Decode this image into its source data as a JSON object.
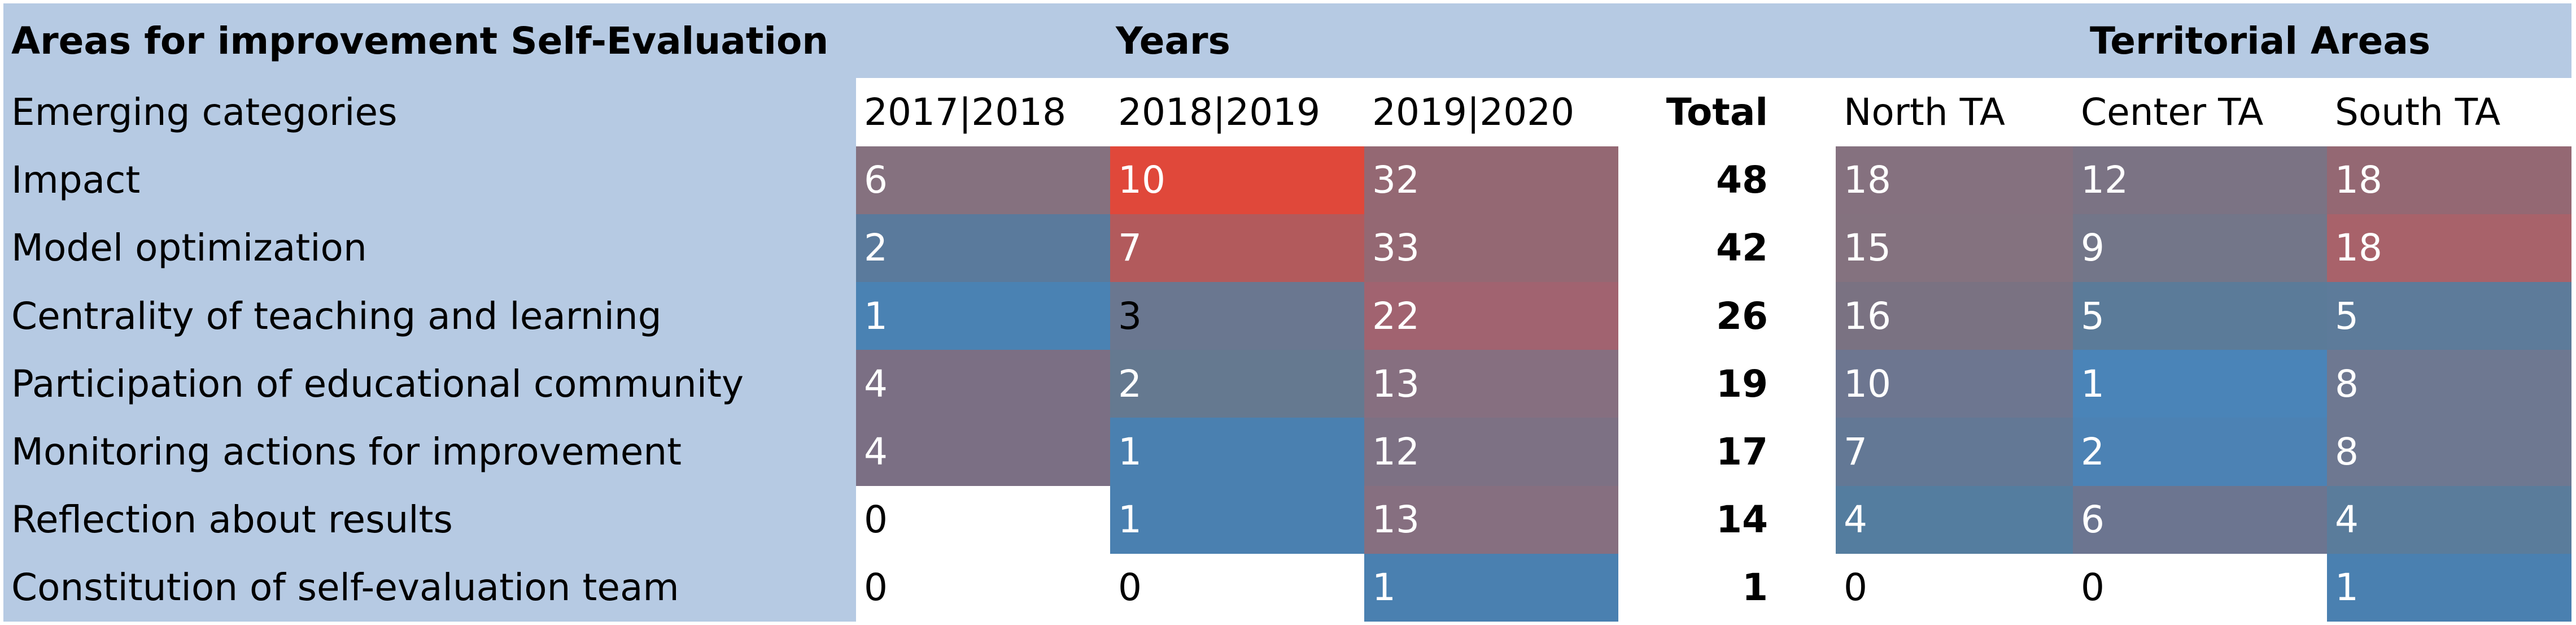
{
  "chart_data": {
    "type": "heatmap",
    "title": "Areas for improvement Self-Evaluation",
    "row_header": "Emerging categories",
    "groups": [
      {
        "name": "Years",
        "columns": [
          "2017|2018",
          "2018|2019",
          "2019|2020"
        ]
      },
      {
        "name": "Territorial Areas",
        "columns": [
          "North TA",
          "Center TA",
          "South TA"
        ]
      }
    ],
    "total_label": "Total",
    "categories": [
      "Impact",
      "Model optimization",
      "Centrality of teaching and learning",
      "Participation of educational community",
      "Monitoring actions for improvement",
      "Reflection about results",
      "Constitution of self-evaluation team"
    ],
    "series": [
      {
        "name": "2017|2018",
        "group": "Years",
        "values": [
          6,
          2,
          1,
          4,
          4,
          0,
          0
        ]
      },
      {
        "name": "2018|2019",
        "group": "Years",
        "values": [
          10,
          7,
          3,
          2,
          1,
          1,
          0
        ]
      },
      {
        "name": "2019|2020",
        "group": "Years",
        "values": [
          32,
          33,
          22,
          13,
          12,
          13,
          1
        ]
      },
      {
        "name": "North TA",
        "group": "Territorial Areas",
        "values": [
          18,
          15,
          16,
          10,
          7,
          4,
          0
        ]
      },
      {
        "name": "Center TA",
        "group": "Territorial Areas",
        "values": [
          12,
          9,
          5,
          1,
          2,
          6,
          0
        ]
      },
      {
        "name": "South TA",
        "group": "Territorial Areas",
        "values": [
          18,
          18,
          5,
          8,
          8,
          4,
          1
        ]
      }
    ],
    "totals": [
      48,
      42,
      26,
      19,
      17,
      14,
      1
    ],
    "cell_colors": [
      [
        "#85717f",
        "#e0483a",
        "#946873",
        "#85717f",
        "#7b7384",
        "#946873"
      ],
      [
        "#5a7a9c",
        "#b25a5c",
        "#946873",
        "#84727f",
        "#737689",
        "#a8626a"
      ],
      [
        "#4a82b3",
        "#6a7790",
        "#a16370",
        "#7a7282",
        "#5b7b99",
        "#5d7b9a"
      ],
      [
        "#7b6f84",
        "#657990",
        "#866f80",
        "#6d7690",
        "#4a84b8",
        "#6e7891"
      ],
      [
        "#7b6f84",
        "#4a80b0",
        "#7d7184",
        "#637895",
        "#4c82b4",
        "#6e7891"
      ],
      [
        "#ffffff",
        "#4a80b0",
        "#866f80",
        "#547d9f",
        "#6c7590",
        "#5a7c9b"
      ],
      [
        "#ffffff",
        "#ffffff",
        "#4a80b0",
        "#ffffff",
        "#ffffff",
        "#4a80b0"
      ]
    ],
    "text_colors": [
      [
        "#ffffff",
        "#ffffff",
        "#ffffff",
        "#ffffff",
        "#ffffff",
        "#ffffff"
      ],
      [
        "#ffffff",
        "#ffffff",
        "#ffffff",
        "#ffffff",
        "#ffffff",
        "#ffffff"
      ],
      [
        "#ffffff",
        "#000000",
        "#ffffff",
        "#ffffff",
        "#ffffff",
        "#ffffff"
      ],
      [
        "#ffffff",
        "#ffffff",
        "#ffffff",
        "#ffffff",
        "#ffffff",
        "#ffffff"
      ],
      [
        "#ffffff",
        "#ffffff",
        "#ffffff",
        "#ffffff",
        "#ffffff",
        "#ffffff"
      ],
      [
        "#000000",
        "#ffffff",
        "#ffffff",
        "#ffffff",
        "#ffffff",
        "#ffffff"
      ],
      [
        "#000000",
        "#000000",
        "#ffffff",
        "#000000",
        "#000000",
        "#ffffff"
      ]
    ],
    "label_background": "#b6cae3"
  }
}
